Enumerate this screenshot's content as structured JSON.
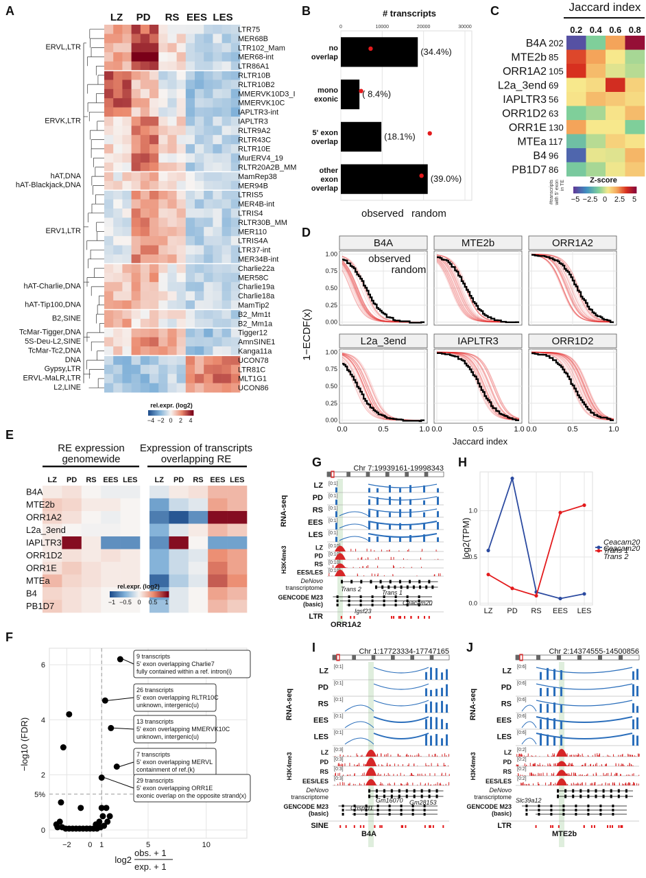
{
  "panel_letters": [
    "A",
    "B",
    "C",
    "D",
    "E",
    "F",
    "G",
    "H",
    "I",
    "J"
  ],
  "colors": {
    "LZ": "#f0a030",
    "PD": "#e64b35",
    "RS": "#9b59b6",
    "EES": "#6a5acd",
    "LES": "#4aa3df",
    "observed": "#000000",
    "random": "#e31a1c",
    "trans1": "#2b4aa0",
    "trans2": "#e31a1c",
    "rnaseq": "#2a6ebb",
    "h3k4me3": "#d62728",
    "highlight": "#dfeedd"
  },
  "stages": [
    "LZ",
    "PD",
    "RS",
    "EES",
    "LES"
  ],
  "panelA": {
    "rows": [
      "LTR75",
      "MER68B",
      "LTR102_Mam",
      "MER68-int",
      "LTR86A1",
      "RLTR10B",
      "RLTR10B2",
      "MMERVK10D3_I",
      "MMERVK10C",
      "IAPLTR3-int",
      "IAPLTR3",
      "RLTR9A2",
      "RLTR43C",
      "RLTR10E",
      "MurERV4_19",
      "RLTR20A2B_MM",
      "MamRep38",
      "MER94B",
      "LTRIS5",
      "MER4B-int",
      "LTRIS4",
      "RLTR30B_MM",
      "MER110",
      "LTRIS4A",
      "LTR37-int",
      "MER34B-int",
      "Charlie22a",
      "MER58C",
      "Charlie19a",
      "Charlie18a",
      "MamTip2",
      "B2_Mm1t",
      "B2_Mm1a",
      "Tigger12",
      "AmnSINE1",
      "Kanga11a",
      "UCON78",
      "LTR81C",
      "MLT1G1",
      "UCON86"
    ],
    "groups": [
      {
        "name": "ERVL,LTR",
        "row": 2
      },
      {
        "name": "ERVK,LTR",
        "row": 10
      },
      {
        "name": "hAT,DNA",
        "row": 16
      },
      {
        "name": "hAT-Blackjack,DNA",
        "row": 17
      },
      {
        "name": "ERV1,LTR",
        "row": 22
      },
      {
        "name": "hAT-Charlie,DNA",
        "row": 28
      },
      {
        "name": "hAT-Tip100,DNA",
        "row": 30
      },
      {
        "name": "B2,SINE",
        "row": 31.5
      },
      {
        "name": "TcMar-Tigger,DNA",
        "row": 33
      },
      {
        "name": "5S-Deu-L2,SINE",
        "row": 34
      },
      {
        "name": "TcMar-Tc2,DNA",
        "row": 35
      },
      {
        "name": "DNA",
        "row": 36
      },
      {
        "name": "Gypsy,LTR",
        "row": 37
      },
      {
        "name": "ERVL-MaLR,LTR",
        "row": 38
      },
      {
        "name": "L2,LINE",
        "row": 39
      }
    ],
    "legend_title": "rel.expr. (log2)",
    "legend_ticks": [
      "−4",
      "−2",
      "0",
      "2",
      "4"
    ]
  },
  "panelB": {
    "title": "# transcripts",
    "ticks": [
      "0",
      "10000",
      "20000",
      "30000"
    ],
    "categories": [
      "no overlap",
      "mono exonic",
      "5' exon overlap",
      "other exon overlap"
    ],
    "category_lines": [
      [
        "no",
        "overlap"
      ],
      [
        "mono",
        "exonic"
      ],
      [
        "5' exon",
        "overlap"
      ],
      [
        "other",
        "exon",
        "overlap"
      ]
    ],
    "observed": [
      18600,
      4500,
      9800,
      21000
    ],
    "random": [
      7200,
      4900,
      21500,
      19500
    ],
    "pct_labels": [
      "(34.4%)",
      "( 8.4%)",
      "(18.1%)",
      "(39.0%)"
    ],
    "legend_observed": "observed",
    "legend_random": "random"
  },
  "panelC": {
    "title": "Jaccard index",
    "col_ticks": [
      "0.2",
      "0.4",
      "0.6",
      "0.8"
    ],
    "rows": [
      {
        "name": "B4A",
        "n": "202"
      },
      {
        "name": "MTE2b",
        "n": "85"
      },
      {
        "name": "ORR1A2",
        "n": "105"
      },
      {
        "name": "L2a_3end",
        "n": "69"
      },
      {
        "name": "IAPLTR3",
        "n": "56"
      },
      {
        "name": "ORR1D2",
        "n": "63"
      },
      {
        "name": "ORR1E",
        "n": "130"
      },
      {
        "name": "MTEa",
        "n": "117"
      },
      {
        "name": "B4",
        "n": "96"
      },
      {
        "name": "PB1D7",
        "n": "86"
      }
    ],
    "zscores": [
      [
        -4.5,
        -1.0,
        2.0,
        4.8
      ],
      [
        3.2,
        2.0,
        0.5,
        -0.5
      ],
      [
        3.5,
        1.5,
        0.2,
        -0.3
      ],
      [
        0.5,
        0.8,
        3.6,
        1.0
      ],
      [
        0.6,
        1.5,
        1.2,
        0.8
      ],
      [
        -1.0,
        -0.5,
        0.6,
        1.5
      ],
      [
        2.0,
        0.5,
        0.5,
        -1.0
      ],
      [
        -1.5,
        -0.3,
        1.0,
        0.6
      ],
      [
        -4.0,
        0.3,
        0.2,
        1.6
      ],
      [
        -1.2,
        -0.5,
        0.4,
        1.2
      ]
    ],
    "side_label": [
      "#transcripts",
      "with 5' exon",
      "in TE"
    ],
    "legend_title": "Z-score",
    "legend_ticks": [
      "−5",
      "−2.5",
      "0",
      "2.5",
      "5"
    ]
  },
  "panelD": {
    "facets": [
      "B4A",
      "MTE2b",
      "ORR1A2",
      "L2a_3end",
      "IAPLTR3",
      "ORR1D2"
    ],
    "ylabel": "1−ECDF(x)",
    "xlabel": "Jaccard index",
    "yticks": [
      "0.00",
      "0.25",
      "0.50",
      "0.75",
      "1.00"
    ],
    "xticks": [
      "0.0",
      "0.5",
      "1.0"
    ],
    "legend_observed": "observed",
    "legend_random": "random",
    "observed_medians": [
      0.28,
      0.35,
      0.55,
      0.18,
      0.52,
      0.5
    ]
  },
  "panelE": {
    "left_title": [
      "RE expression",
      "genomewide"
    ],
    "right_title": [
      "Expression of transcripts",
      "overlapping RE"
    ],
    "rows": [
      "B4A",
      "MTE2b",
      "ORR1A2",
      "L2a_3end",
      "IAPLTR3",
      "ORR1D2",
      "ORR1E",
      "MTEa",
      "B4",
      "PB1D7"
    ],
    "left": [
      [
        0.05,
        0.1,
        0.0,
        -0.05,
        -0.05
      ],
      [
        0.2,
        0.15,
        0.05,
        0.05,
        0.0
      ],
      [
        0.15,
        0.1,
        0.0,
        -0.05,
        0.0
      ],
      [
        0.05,
        0.0,
        -0.02,
        -0.02,
        0.0
      ],
      [
        0.05,
        1.0,
        0.05,
        -0.7,
        -0.7
      ],
      [
        0.05,
        0.1,
        0.05,
        0.1,
        0.05
      ],
      [
        0.1,
        0.2,
        0.1,
        0.05,
        0.05
      ],
      [
        0.3,
        0.15,
        0.1,
        0.05,
        0.05
      ],
      [
        0.15,
        0.1,
        0.05,
        0.0,
        0.0
      ],
      [
        0.2,
        0.1,
        0.05,
        0.0,
        0.0
      ]
    ],
    "right": [
      [
        -0.1,
        0.05,
        0.1,
        0.3,
        0.3
      ],
      [
        -0.6,
        -0.2,
        -0.1,
        0.4,
        0.3
      ],
      [
        -0.8,
        -1.0,
        -0.7,
        1.0,
        1.0
      ],
      [
        -0.5,
        -0.1,
        0.05,
        0.3,
        0.2
      ],
      [
        -0.7,
        1.0,
        0.0,
        -0.6,
        -0.6
      ],
      [
        -0.5,
        -0.2,
        -0.1,
        0.5,
        0.4
      ],
      [
        -0.5,
        -0.2,
        -0.05,
        0.6,
        0.4
      ],
      [
        -0.9,
        -0.3,
        -0.1,
        0.7,
        0.5
      ],
      [
        -0.6,
        -0.1,
        0.0,
        0.4,
        0.3
      ],
      [
        -0.4,
        -0.1,
        0.0,
        0.3,
        0.2
      ]
    ],
    "legend_title": "rel.expr. (log2)",
    "legend_ticks": [
      "−1",
      "−0.5",
      "0",
      "0.5",
      "1"
    ]
  },
  "panelF": {
    "ylabel": "−log10 (FDR)",
    "xlabel_top": "obs. + 1",
    "xlabel_bottom": "exp. + 1",
    "xlabel_prefix": "log2",
    "xticks": [
      "−2",
      "0",
      "1",
      "5",
      "10"
    ],
    "yticks": [
      "0",
      "2",
      "4",
      "6"
    ],
    "five_pct": "5%",
    "points": [
      [
        2.6,
        6.2
      ],
      [
        1.3,
        4.7
      ],
      [
        1.8,
        3.7
      ],
      [
        2.3,
        2.3
      ],
      [
        1.0,
        1.9
      ],
      [
        -1.8,
        4.2
      ],
      [
        -2.3,
        3.0
      ],
      [
        -2.5,
        1.0
      ],
      [
        -0.8,
        0.8
      ],
      [
        1.0,
        0.8
      ],
      [
        1.4,
        0.8
      ],
      [
        -2.8,
        0.1
      ],
      [
        -2.4,
        0.1
      ],
      [
        -2.1,
        0.05
      ],
      [
        -1.8,
        0.05
      ],
      [
        -1.5,
        0.05
      ],
      [
        -1.2,
        0.05
      ],
      [
        -0.9,
        0.05
      ],
      [
        -0.6,
        0.05
      ],
      [
        -0.3,
        0.05
      ],
      [
        0.0,
        0.05
      ],
      [
        0.3,
        0.05
      ],
      [
        0.6,
        0.05
      ],
      [
        0.9,
        0.1
      ],
      [
        1.2,
        0.15
      ],
      [
        1.5,
        0.3
      ],
      [
        1.7,
        0.5
      ],
      [
        0.8,
        0.3
      ],
      [
        0.5,
        0.2
      ],
      [
        -2.9,
        0.2
      ],
      [
        -2.6,
        0.3
      ],
      [
        1.1,
        0.5
      ]
    ],
    "annotations": [
      {
        "lines": [
          "9 transcripts",
          "5' exon overlapping Charlie7",
          "fully contained within a ref. intron(i)"
        ],
        "point": 0
      },
      {
        "lines": [
          "26 transcripts",
          "5' exon overlapping RLTR10C",
          "unknown, intergenic(u)"
        ],
        "point": 1
      },
      {
        "lines": [
          "13 transcripts",
          "5' exon overlapping MMERVK10C",
          "unknown, intergenic(u)"
        ],
        "point": 2
      },
      {
        "lines": [
          "7 transcripts",
          "5' exon overlapping MERVL",
          "containment of ref.(k)"
        ],
        "point": 3
      },
      {
        "lines": [
          "29 transcripts",
          "5' exon overlapping ORR1E",
          "exonic overlap on the opposite strand(x)"
        ],
        "point": 4
      }
    ]
  },
  "panelG": {
    "coord": "Chr 7:19939161-19998343",
    "rna_rows": [
      "LZ",
      "PD",
      "RS",
      "EES",
      "LES"
    ],
    "chip_rows": [
      "LZ",
      "PD",
      "RS",
      "EES/LES"
    ],
    "scale_rna": "[0:1]",
    "scale_chip": "[0:10]",
    "rna_label": "RNA-seq",
    "chip_label": "H3K4me3",
    "denovo": [
      "DeNovo",
      "transcriptome"
    ],
    "gencode": [
      "GENCODE M23",
      "(basic)"
    ],
    "te_track": "LTR",
    "te_name": "ORR1A2",
    "genes": [
      "Igsf23",
      "Ceacam20"
    ],
    "trans_labels": [
      "Trans 2",
      "Trans 1"
    ]
  },
  "panelH": {
    "ylabel": "log2(TPM)",
    "categories": [
      "LZ",
      "PD",
      "RS",
      "EES",
      "LES"
    ],
    "yticks": [
      "0.0",
      "0.5",
      "1.0"
    ],
    "series": [
      {
        "name": "Ceacam20 Trans 1",
        "name_lines": [
          "Ceacam20",
          "Trans 1"
        ],
        "values": [
          0.57,
          1.35,
          0.12,
          0.05,
          0.1
        ]
      },
      {
        "name": "Ceacam20 Trans 2",
        "name_lines": [
          "Ceacam20",
          "Trans 2"
        ],
        "values": [
          0.31,
          0.16,
          0.08,
          0.98,
          1.06
        ]
      }
    ]
  },
  "panelI": {
    "coord": "Chr 1:17723334-17747165",
    "scale_rna": "[0:1]",
    "scale_chip": "[0:3]",
    "te_track": "SINE",
    "te_name": "B4A",
    "genes": [
      "Gm16070",
      "Gm28153",
      "Crispld1"
    ]
  },
  "panelJ": {
    "coord": "Chr 2:14374555-14500856",
    "scale_rna": "[0:6]",
    "scale_chip": "[0:2]",
    "te_track": "LTR",
    "te_name": "MTE2b",
    "genes": [
      "Slc39a12"
    ]
  }
}
